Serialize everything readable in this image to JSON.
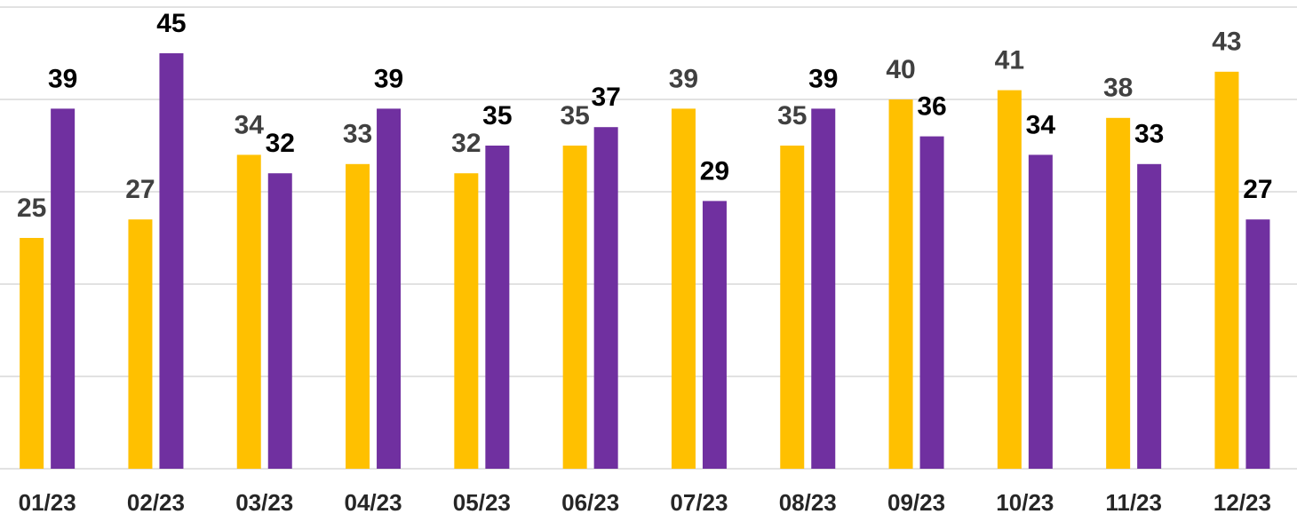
{
  "chart_data": {
    "type": "bar",
    "categories": [
      "01/23",
      "02/23",
      "03/23",
      "04/23",
      "05/23",
      "06/23",
      "07/23",
      "08/23",
      "09/23",
      "10/23",
      "11/23",
      "12/23"
    ],
    "series": [
      {
        "color": "#FFC000",
        "values": [
          25,
          27,
          34,
          33,
          32,
          35,
          39,
          35,
          40,
          41,
          38,
          43
        ]
      },
      {
        "color": "#7030A0",
        "values": [
          39,
          45,
          32,
          39,
          35,
          37,
          29,
          39,
          36,
          34,
          33,
          27
        ]
      }
    ],
    "ylim": [
      0,
      50
    ],
    "yticks": [
      0,
      10,
      20,
      30,
      40,
      50
    ],
    "grid": true
  }
}
